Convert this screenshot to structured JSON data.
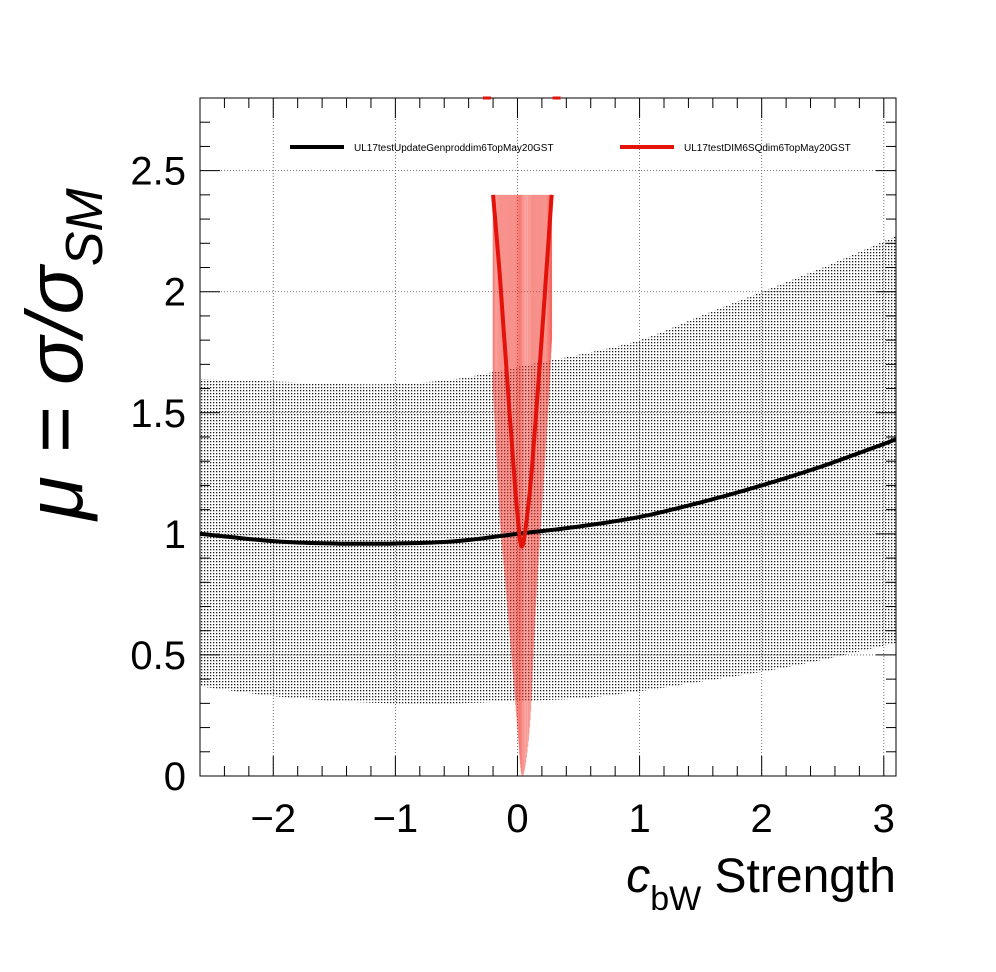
{
  "chart_data": {
    "type": "line",
    "title": "",
    "ylabel": {
      "main": "μ = σ/σ",
      "subscript": "SM"
    },
    "xlabel": {
      "prefix": "c",
      "subscript": "bW",
      "suffix": " Strength"
    },
    "xlim": [
      -2.6,
      3.1
    ],
    "ylim": [
      0,
      2.8
    ],
    "grid": true,
    "legend_position": "top",
    "x_ticks": [
      {
        "value": -2,
        "label": "−2"
      },
      {
        "value": -1,
        "label": "−1"
      },
      {
        "value": 0,
        "label": "0"
      },
      {
        "value": 1,
        "label": "1"
      },
      {
        "value": 2,
        "label": "2"
      },
      {
        "value": 3,
        "label": "3"
      }
    ],
    "y_ticks": [
      {
        "value": 0,
        "label": "0"
      },
      {
        "value": 0.5,
        "label": "0.5"
      },
      {
        "value": 1,
        "label": "1"
      },
      {
        "value": 1.5,
        "label": "1.5"
      },
      {
        "value": 2,
        "label": "2"
      },
      {
        "value": 2.5,
        "label": "2.5"
      }
    ],
    "series": [
      {
        "name": "UL17testUpdateGenproddim6TopMay20GST",
        "color": "#000000",
        "x": [
          -2.6,
          -2.0,
          -1.5,
          -1.0,
          -0.5,
          0.0,
          0.5,
          1.0,
          1.5,
          2.0,
          2.5,
          3.1
        ],
        "y": [
          1.0,
          0.97,
          0.96,
          0.96,
          0.97,
          1.0,
          1.03,
          1.07,
          1.13,
          1.2,
          1.28,
          1.39
        ],
        "band_upper": [
          1.64,
          1.63,
          1.62,
          1.62,
          1.64,
          1.69,
          1.74,
          1.8,
          1.9,
          2.0,
          2.1,
          2.23
        ],
        "band_lower": [
          0.37,
          0.33,
          0.31,
          0.3,
          0.3,
          0.31,
          0.32,
          0.35,
          0.39,
          0.43,
          0.48,
          0.55
        ]
      },
      {
        "name": "UL17testDIM6SQdim6TopMay20GST",
        "color": "#e3120b",
        "x": [
          -0.2,
          -0.15,
          -0.1,
          -0.05,
          0.0,
          0.04,
          0.1,
          0.15,
          0.2,
          0.25,
          0.28
        ],
        "y": [
          2.4,
          2.1,
          1.75,
          1.4,
          1.08,
          0.95,
          1.17,
          1.48,
          1.82,
          2.18,
          2.4
        ],
        "band_upper": [
          2.4,
          2.4,
          2.4,
          2.4,
          2.4,
          2.4,
          2.4,
          2.4,
          2.4,
          2.4,
          2.4
        ],
        "band_lower": [
          1.6,
          1.1,
          0.8,
          0.5,
          0.2,
          0.0,
          0.2,
          0.7,
          1.1,
          1.5,
          1.8
        ]
      }
    ],
    "colors": {
      "axis": "#000000",
      "grid": "#555555",
      "black_band": "#111111",
      "red_band": "#f23a30"
    }
  }
}
